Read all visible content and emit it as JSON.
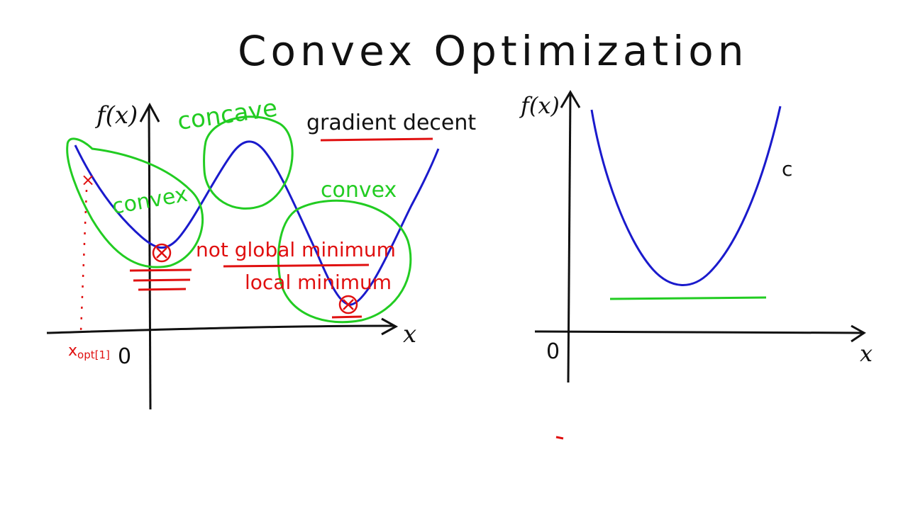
{
  "title": "Convex Optimization",
  "left_panel": {
    "y_axis_label": "f(x)",
    "x_axis_label": "x",
    "origin_label": "0",
    "x_opt_label": "x",
    "x_opt_subscript": "opt[1]",
    "concave_label": "concave",
    "convex_label_1": "convex",
    "convex_label_2": "convex",
    "gradient_label": "gradient decent",
    "not_global_label": "not global minimum",
    "local_min_label": "local minimum",
    "start_mark": "×"
  },
  "right_panel": {
    "y_axis_label": "f(x)",
    "x_axis_label": "x",
    "origin_label": "0",
    "partial_label": "c"
  },
  "colors": {
    "ink": "#111111",
    "curve": "#1a1acc",
    "green": "#22cc22",
    "red": "#e01010"
  }
}
